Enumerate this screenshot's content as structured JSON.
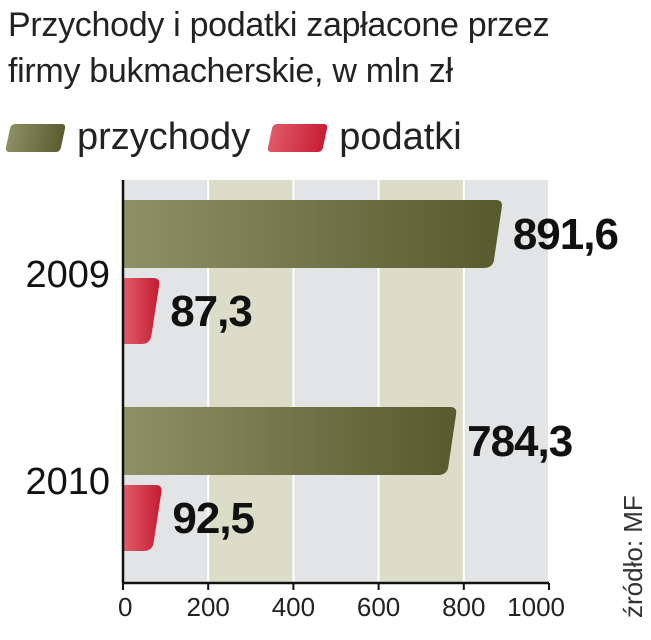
{
  "title_line1": "Przychody i podatki zapłacone przez",
  "title_line2": "firmy bukmacherskie, w mln zł",
  "source": "źródło: MF",
  "chart_data": {
    "type": "bar",
    "orientation": "horizontal",
    "categories": [
      "2009",
      "2010"
    ],
    "series": [
      {
        "name": "przychody",
        "values": [
          891.6,
          784.3
        ],
        "labels": [
          "891,6",
          "784,3"
        ],
        "color": "#6b6e3d"
      },
      {
        "name": "podatki",
        "values": [
          87.3,
          92.5
        ],
        "labels": [
          "87,3",
          "92,5"
        ],
        "color": "#d42a40"
      }
    ],
    "xlim": [
      0,
      1000
    ],
    "xticks": [
      "0",
      "200",
      "400",
      "600",
      "800",
      "1000"
    ],
    "xtick_values": [
      0,
      200,
      400,
      600,
      800,
      1000
    ],
    "grid": true,
    "legend_position": "top-left"
  }
}
